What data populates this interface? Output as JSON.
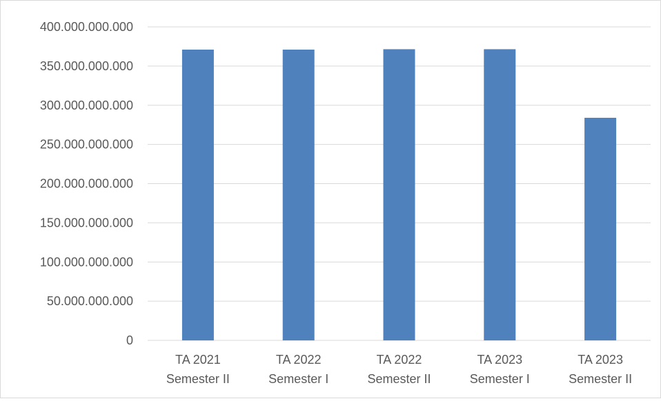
{
  "chart_data": {
    "type": "bar",
    "title": "",
    "xlabel": "",
    "ylabel": "",
    "categories": [
      [
        "TA 2021",
        "Semester II"
      ],
      [
        "TA 2022",
        "Semester I"
      ],
      [
        "TA 2022",
        "Semester II"
      ],
      [
        "TA 2023",
        "Semester I"
      ],
      [
        "TA 2023",
        "Semester II"
      ]
    ],
    "values": [
      371000000000,
      371000000000,
      371500000000,
      371500000000,
      284000000000
    ],
    "ylim": [
      0,
      400000000000
    ],
    "yticks": [
      0,
      50000000000,
      100000000000,
      150000000000,
      200000000000,
      250000000000,
      300000000000,
      350000000000,
      400000000000
    ],
    "ytick_labels": [
      "0",
      "50.000.000.000",
      "100.000.000.000",
      "150.000.000.000",
      "200.000.000.000",
      "250.000.000.000",
      "300.000.000.000",
      "350.000.000.000",
      "400.000.000.000"
    ],
    "grid": true,
    "legend": "none",
    "colors": {
      "bar": "#4f81bd",
      "grid": "#d9d9d9",
      "axis_text": "#595959"
    }
  }
}
